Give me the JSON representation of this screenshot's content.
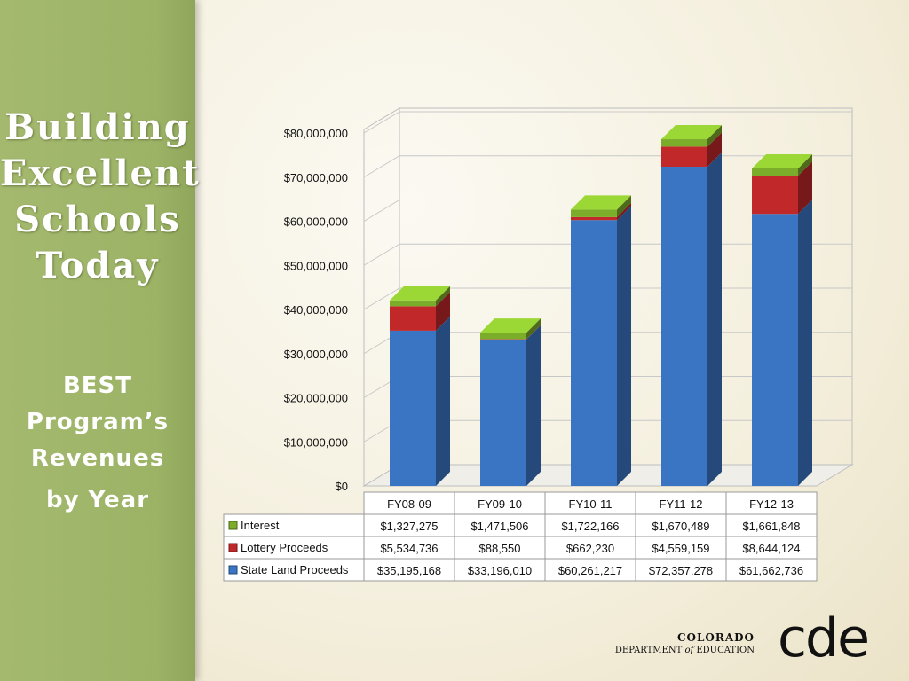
{
  "sidebar": {
    "title_lines": [
      "Building",
      "Excellent",
      "Schools",
      "Today"
    ],
    "subtitle_lines": [
      "BEST",
      "Program’s",
      "Revenues",
      "by Year"
    ]
  },
  "logo": {
    "line1": "COLORADO",
    "line2_a": "DEPARTMENT",
    "line2_of": "of",
    "line2_b": "EDUCATION",
    "mark": "cde"
  },
  "chart_data": {
    "type": "bar",
    "stacked": true,
    "three_d": true,
    "categories": [
      "FY08-09",
      "FY09-10",
      "FY10-11",
      "FY11-12",
      "FY12-13"
    ],
    "series": [
      {
        "name": "State Land Proceeds",
        "color": "#3a75c4",
        "values": [
          35195168,
          33196010,
          60261217,
          72357278,
          61662736
        ],
        "labels": [
          "$35,195,168",
          "$33,196,010",
          "$60,261,217",
          "$72,357,278",
          "$61,662,736"
        ]
      },
      {
        "name": "Lottery Proceeds",
        "color": "#c0282a",
        "values": [
          5534736,
          88550,
          662230,
          4559159,
          8644124
        ],
        "labels": [
          "$5,534,736",
          "$88,550",
          "$662,230",
          "$4,559,159",
          "$8,644,124"
        ]
      },
      {
        "name": "Interest",
        "color": "#7cad2a",
        "values": [
          1327275,
          1471506,
          1722166,
          1670489,
          1661848
        ],
        "labels": [
          "$1,327,275",
          "$1,471,506",
          "$1,722,166",
          "$1,670,489",
          "$1,661,848"
        ]
      }
    ],
    "y_ticks": [
      "$0",
      "$10,000,000",
      "$20,000,000",
      "$30,000,000",
      "$40,000,000",
      "$50,000,000",
      "$60,000,000",
      "$70,000,000",
      "$80,000,000"
    ],
    "ylim": [
      0,
      80000000
    ],
    "grid": true,
    "legend": "data-table"
  }
}
